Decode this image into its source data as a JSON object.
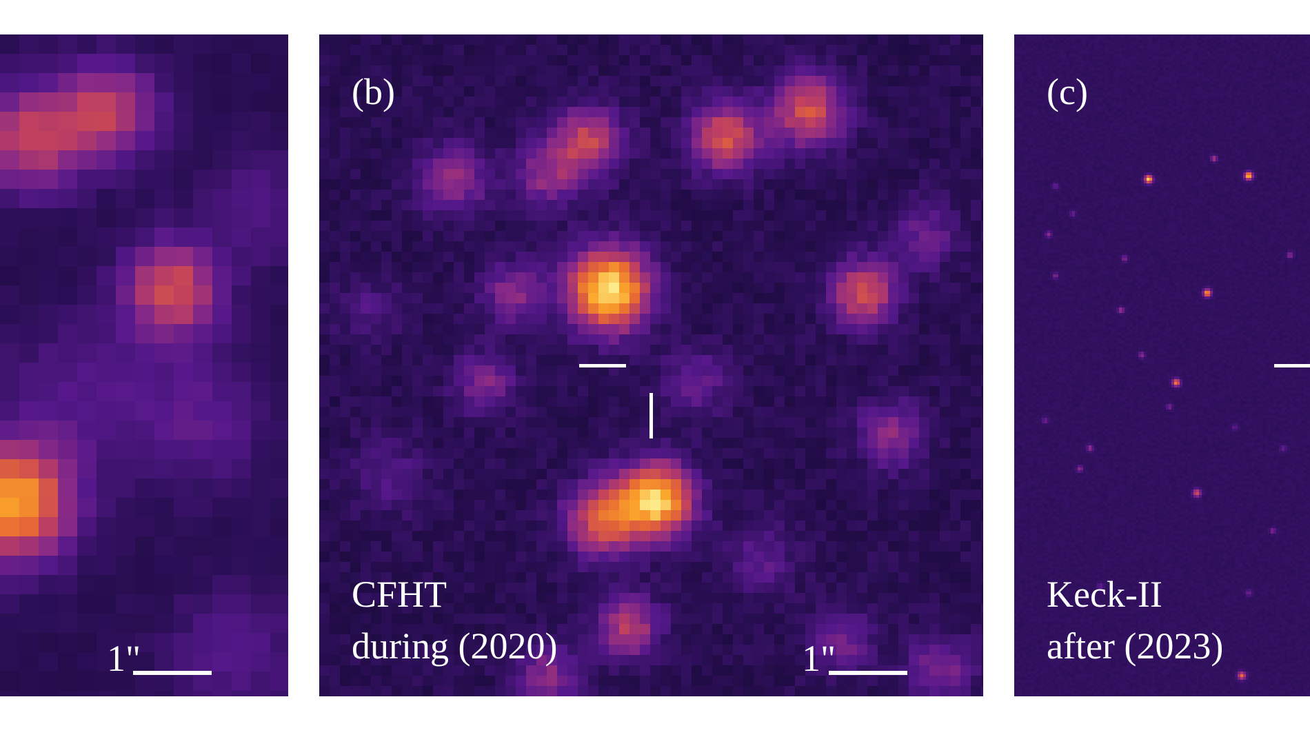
{
  "colors": {
    "background": "#1e0a3c",
    "colormap": [
      "#13082e",
      "#2c0f58",
      "#55188a",
      "#8a2a86",
      "#c0405f",
      "#e86a33",
      "#fba62a",
      "#fdea8a"
    ],
    "marker": "#ffffff"
  },
  "panels": [
    {
      "id": "a",
      "scale_label": "1\""
    },
    {
      "id": "b",
      "label": "(b)",
      "caption_line1": "CFHT",
      "caption_line2": "during (2020)",
      "scale_label": "1\""
    },
    {
      "id": "c",
      "label": "(c)",
      "caption_line1": "Keck-II",
      "caption_line2": "after (2023)"
    }
  ]
}
